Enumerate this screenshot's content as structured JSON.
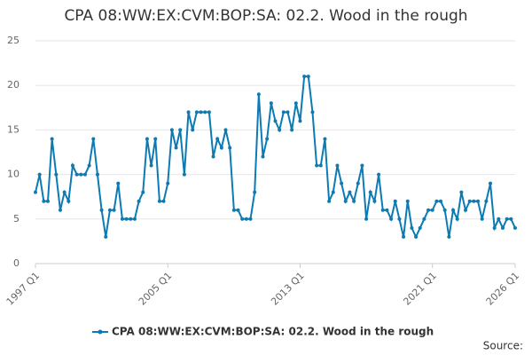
{
  "chart_data": {
    "type": "line",
    "title": "CPA 08:WW:EX:CVM:BOP:SA: 02.2. Wood in the rough",
    "source": "Source:",
    "categories": [
      "1997 Q1",
      null,
      null,
      null,
      null,
      null,
      null,
      null,
      null,
      null,
      null,
      null,
      null,
      null,
      null,
      null,
      null,
      null,
      null,
      null,
      null,
      null,
      null,
      null,
      null,
      null,
      null,
      null,
      null,
      null,
      null,
      null,
      "2005 Q1",
      null,
      null,
      null,
      null,
      null,
      null,
      null,
      null,
      null,
      null,
      null,
      null,
      null,
      null,
      null,
      null,
      null,
      null,
      null,
      null,
      null,
      null,
      null,
      null,
      null,
      null,
      null,
      null,
      null,
      null,
      null,
      "2013 Q1",
      null,
      null,
      null,
      null,
      null,
      null,
      null,
      null,
      null,
      null,
      null,
      null,
      null,
      null,
      null,
      null,
      null,
      null,
      null,
      null,
      null,
      null,
      null,
      null,
      null,
      null,
      null,
      null,
      null,
      null,
      null,
      "2021 Q1",
      null,
      null,
      null,
      null,
      null,
      null,
      null,
      null,
      null,
      null,
      null,
      null,
      null,
      null,
      null,
      null,
      null,
      null,
      null,
      "2026 Q1"
    ],
    "series": [
      {
        "name": "CPA 08:WW:EX:CVM:BOP:SA: 02.2. Wood in the rough",
        "color": "#0c7bb3",
        "values": [
          8,
          10,
          7,
          7,
          14,
          10,
          6,
          8,
          7,
          11,
          10,
          10,
          10,
          11,
          14,
          10,
          6,
          3,
          6,
          6,
          9,
          5,
          5,
          5,
          5,
          7,
          8,
          14,
          11,
          14,
          7,
          7,
          9,
          15,
          13,
          15,
          10,
          17,
          15,
          17,
          17,
          17,
          17,
          12,
          14,
          13,
          15,
          13,
          6,
          6,
          5,
          5,
          5,
          8,
          19,
          12,
          14,
          18,
          16,
          15,
          17,
          17,
          15,
          18,
          16,
          21,
          21,
          17,
          11,
          11,
          14,
          7,
          8,
          11,
          9,
          7,
          8,
          7,
          9,
          11,
          5,
          8,
          7,
          10,
          6,
          6,
          5,
          7,
          5,
          3,
          7,
          4,
          3,
          4,
          5,
          6,
          6,
          7,
          7,
          6,
          3,
          6,
          5,
          8,
          6,
          7,
          7,
          7,
          5,
          7,
          9,
          4,
          5,
          4,
          5,
          5,
          4
        ]
      }
    ],
    "ylim": [
      0,
      25
    ],
    "yticks": [
      0,
      5,
      10,
      15,
      20,
      25
    ],
    "grid": true,
    "legend": "bottom"
  }
}
